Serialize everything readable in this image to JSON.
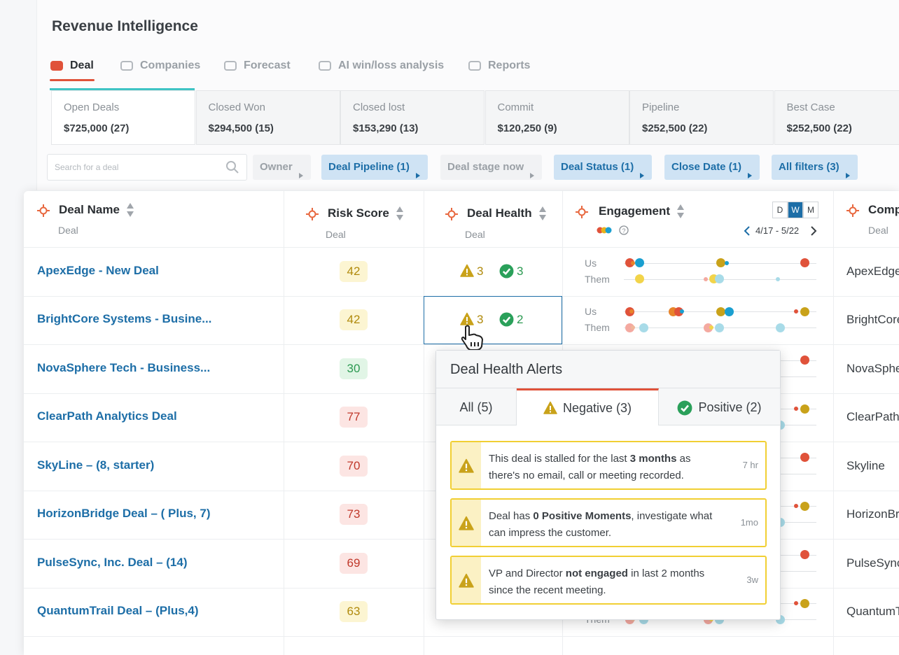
{
  "header": {
    "title": "Revenue Intelligence"
  },
  "tabs": [
    {
      "label": "Deal",
      "active": true
    },
    {
      "label": "Companies",
      "active": false
    },
    {
      "label": "Forecast",
      "active": false
    },
    {
      "label": "AI win/loss analysis",
      "active": false
    },
    {
      "label": "Reports",
      "active": false
    }
  ],
  "summary": [
    {
      "label": "Open Deals",
      "value": "$725,000 (27)",
      "active": true
    },
    {
      "label": "Closed Won",
      "value": "$294,500 (15)",
      "active": false
    },
    {
      "label": "Closed lost",
      "value": "$153,290 (13)",
      "active": false
    },
    {
      "label": "Commit",
      "value": "$120,250 (9)",
      "active": false
    },
    {
      "label": "Pipeline",
      "value": "$252,500 (22)",
      "active": false
    },
    {
      "label": "Best Case",
      "value": "$252,500 (22)",
      "active": false
    }
  ],
  "filters": {
    "search_placeholder": "Search for a deal",
    "items": [
      {
        "label": "Owner",
        "active": false
      },
      {
        "label": "Deal Pipeline (1)",
        "active": true
      },
      {
        "label": "Deal stage now",
        "active": false
      },
      {
        "label": "Deal Status (1)",
        "active": true
      },
      {
        "label": "Close Date (1)",
        "active": true
      },
      {
        "label": "All filters (3)",
        "active": true
      }
    ]
  },
  "table": {
    "columns": [
      {
        "title": "Deal Name",
        "sub": "Deal"
      },
      {
        "title": "Risk Score",
        "sub": "Deal"
      },
      {
        "title": "Deal Health",
        "sub": "Deal"
      },
      {
        "title": "Engagement"
      },
      {
        "title": "Comp",
        "sub": "Deal"
      }
    ],
    "periods": [
      {
        "label": "D",
        "active": false
      },
      {
        "label": "W",
        "active": true
      },
      {
        "label": "M",
        "active": false
      }
    ],
    "date_range": "4/17 - 5/22",
    "engagement_labels": [
      "Us",
      "Them"
    ],
    "rows": [
      {
        "name": "ApexEdge - New Deal",
        "risk": 42,
        "risk_color": "yellow",
        "negative": 3,
        "positive": 3,
        "company": "ApexEdge"
      },
      {
        "name": "BrightCore Systems - Busine...",
        "risk": 42,
        "risk_color": "yellow",
        "negative": 3,
        "positive": 2,
        "company": "BrightCore"
      },
      {
        "name": "NovaSphere Tech - Business...",
        "risk": 30,
        "risk_color": "green",
        "company": "NovaSphere"
      },
      {
        "name": "ClearPath Analytics Deal",
        "risk": 77,
        "risk_color": "red",
        "company": "ClearPath"
      },
      {
        "name": "SkyLine – (8, starter)",
        "risk": 70,
        "risk_color": "red",
        "company": "Skyline"
      },
      {
        "name": "HorizonBridge Deal – ( Plus, 7)",
        "risk": 73,
        "risk_color": "red",
        "company": "HorizonBridge"
      },
      {
        "name": "PulseSync, Inc. Deal – (14)",
        "risk": 69,
        "risk_color": "red",
        "company": "PulseSync"
      },
      {
        "name": "QuantumTrail Deal – (Plus,4)",
        "risk": 63,
        "risk_color": "yellow",
        "company": "QuantumTrail"
      }
    ]
  },
  "popup": {
    "title": "Deal Health Alerts",
    "tabs": [
      {
        "label": "All (5)",
        "active": false
      },
      {
        "label": "Negative (3)",
        "active": true
      },
      {
        "label": "Positive (2)",
        "active": false
      }
    ],
    "alerts": [
      {
        "parts": [
          {
            "text": "This deal is stalled for the last ",
            "bold": false
          },
          {
            "text": "3 months",
            "bold": true
          },
          {
            "text": " as there's no email, call or meeting recorded.",
            "bold": false
          }
        ],
        "time": "7 hr"
      },
      {
        "parts": [
          {
            "text": "Deal has ",
            "bold": false
          },
          {
            "text": "0 Positive Moments",
            "bold": true
          },
          {
            "text": ", investigate what can impress the customer.",
            "bold": false
          }
        ],
        "time": "1mo"
      },
      {
        "parts": [
          {
            "text": "VP and Director ",
            "bold": false
          },
          {
            "text": "not engaged",
            "bold": true
          },
          {
            "text": " in last 2 months since the recent meeting.",
            "bold": false
          }
        ],
        "time": "3w"
      }
    ]
  }
}
